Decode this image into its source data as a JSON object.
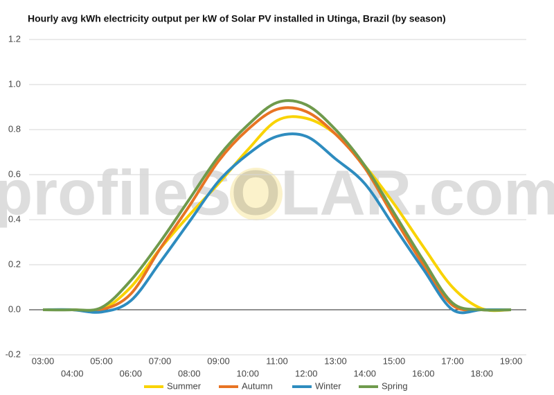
{
  "chart_data": {
    "type": "line",
    "title": "Hourly avg kWh electricity output per kW of Solar PV installed in Utinga, Brazil (by season)",
    "watermark": "profileSOLAR.com",
    "categories": [
      "03:00",
      "04:00",
      "05:00",
      "06:00",
      "07:00",
      "08:00",
      "09:00",
      "10:00",
      "11:00",
      "12:00",
      "13:00",
      "14:00",
      "15:00",
      "16:00",
      "17:00",
      "18:00",
      "19:00"
    ],
    "series": [
      {
        "name": "Summer",
        "color": "#f9d300",
        "values": [
          0,
          0,
          0,
          0.1,
          0.27,
          0.42,
          0.56,
          0.71,
          0.84,
          0.85,
          0.78,
          0.64,
          0.47,
          0.28,
          0.1,
          0.005,
          0
        ]
      },
      {
        "name": "Autumn",
        "color": "#e87424",
        "values": [
          0,
          0,
          0,
          0.07,
          0.27,
          0.46,
          0.66,
          0.8,
          0.89,
          0.88,
          0.78,
          0.63,
          0.41,
          0.2,
          0.02,
          0,
          0
        ]
      },
      {
        "name": "Winter",
        "color": "#2e8cbf",
        "values": [
          0,
          0,
          -0.01,
          0.04,
          0.21,
          0.39,
          0.57,
          0.69,
          0.77,
          0.77,
          0.67,
          0.56,
          0.37,
          0.18,
          0,
          0,
          0
        ]
      },
      {
        "name": "Spring",
        "color": "#6f9a4c",
        "values": [
          0,
          0,
          0.01,
          0.13,
          0.3,
          0.49,
          0.68,
          0.82,
          0.92,
          0.91,
          0.8,
          0.64,
          0.43,
          0.22,
          0.03,
          0,
          0
        ]
      }
    ],
    "ylim": [
      -0.2,
      1.2
    ],
    "yticks": [
      -0.2,
      {
        "value": 0,
        "label": "0.0"
      },
      0.2,
      0.4,
      0.6,
      0.8,
      {
        "value": 1,
        "label": "1.0"
      },
      1.2
    ],
    "grid": true
  }
}
